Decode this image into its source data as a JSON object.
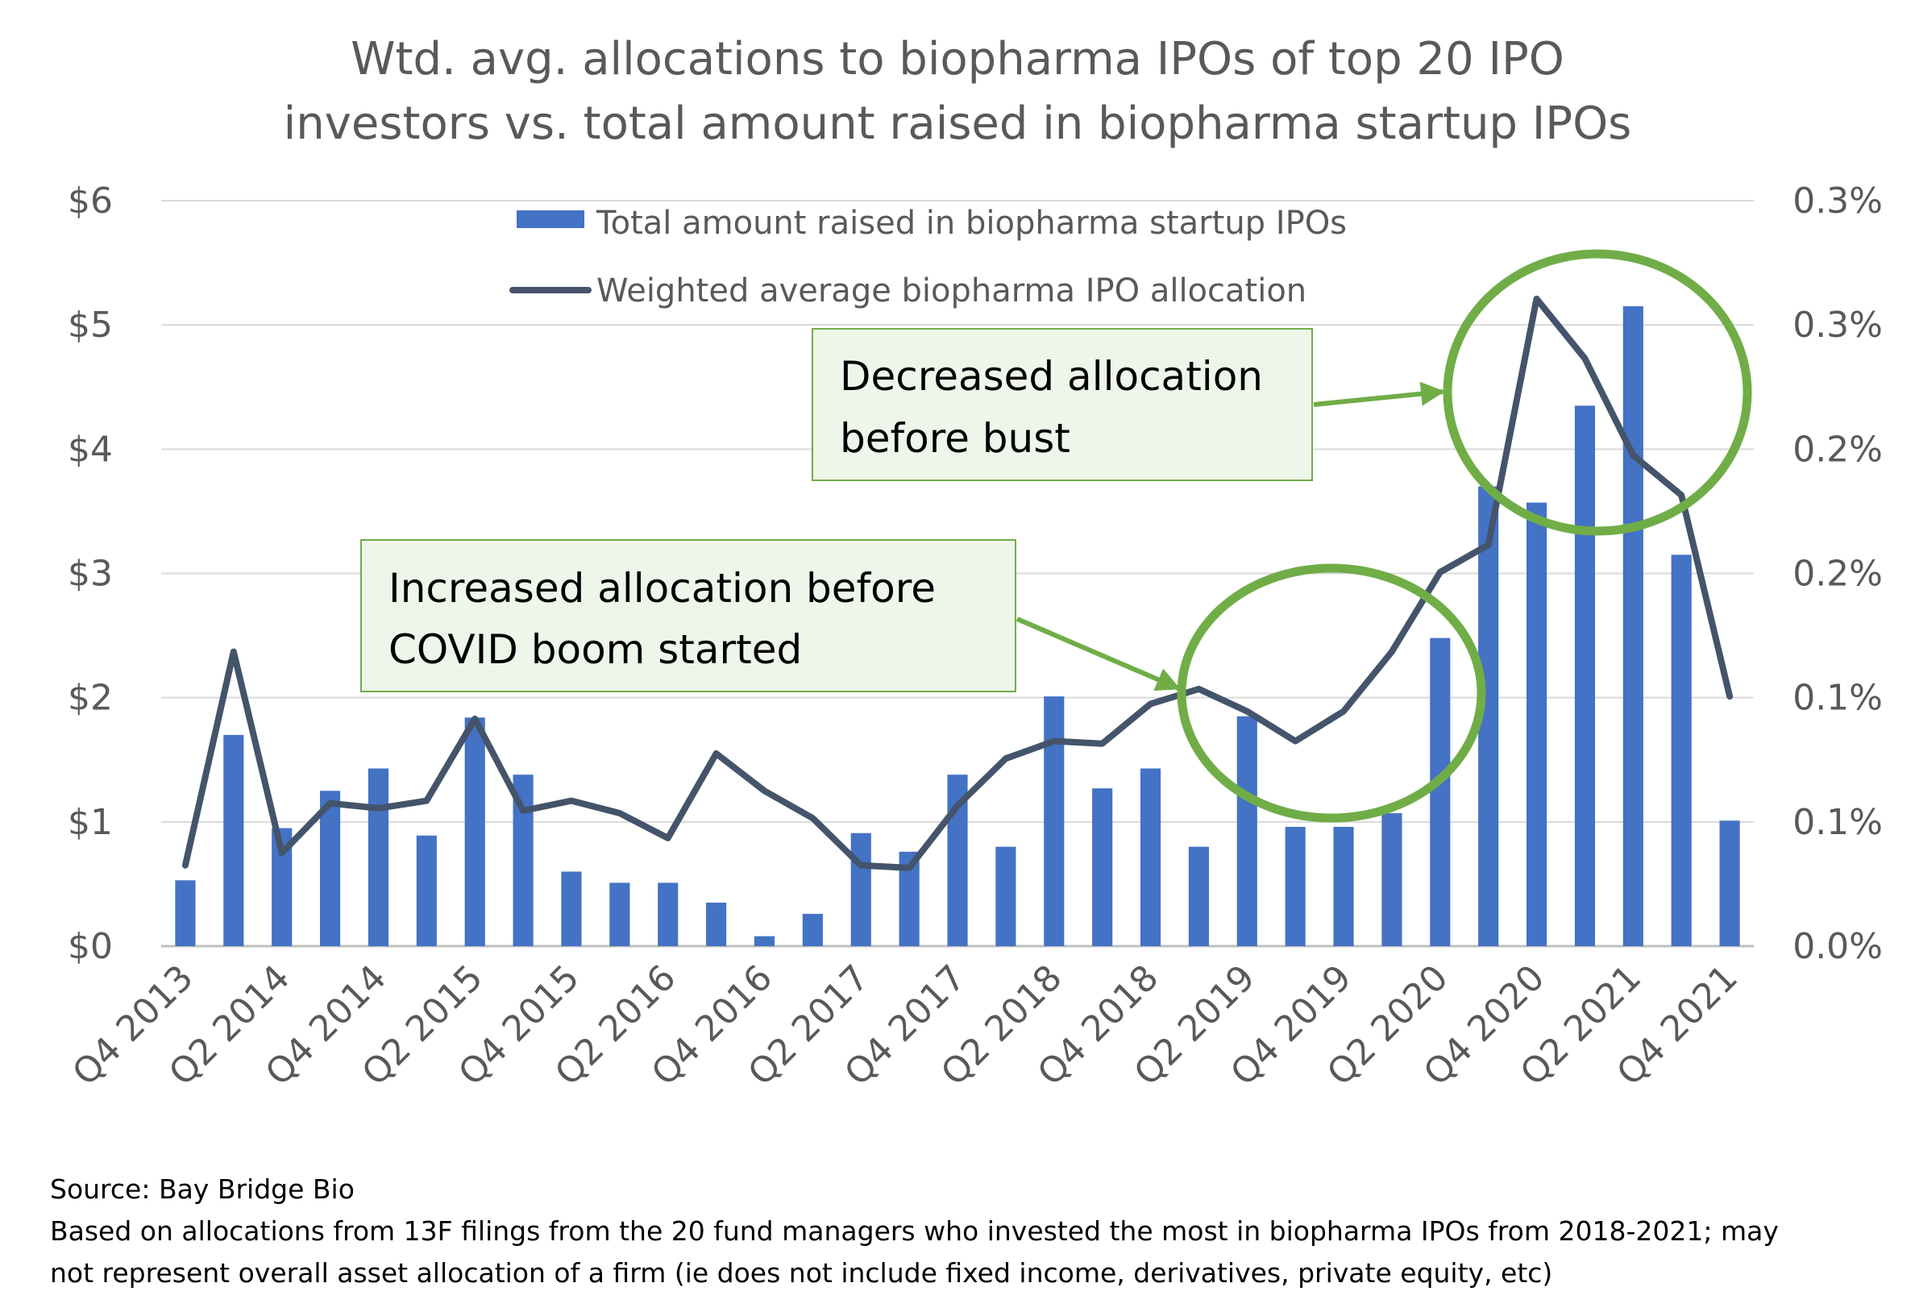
{
  "chart_data": {
    "type": "bar+line",
    "title_lines": [
      "Wtd. avg. allocations to biopharma IPOs of top 20 IPO",
      "investors vs. total amount raised in biopharma startup IPOs"
    ],
    "categories": [
      "Q4 2013",
      "Q1 2014",
      "Q2 2014",
      "Q3 2014",
      "Q4 2014",
      "Q1 2015",
      "Q2 2015",
      "Q3 2015",
      "Q4 2015",
      "Q1 2016",
      "Q2 2016",
      "Q3 2016",
      "Q4 2016",
      "Q1 2017",
      "Q2 2017",
      "Q3 2017",
      "Q4 2017",
      "Q1 2018",
      "Q2 2018",
      "Q3 2018",
      "Q4 2018",
      "Q1 2019",
      "Q2 2019",
      "Q3 2019",
      "Q4 2019",
      "Q1 2020",
      "Q2 2020",
      "Q3 2020",
      "Q4 2020",
      "Q1 2021",
      "Q2 2021",
      "Q3 2021",
      "Q4 2021"
    ],
    "x_tick_labels": [
      "Q4 2013",
      "Q2 2014",
      "Q4 2014",
      "Q2 2015",
      "Q4 2015",
      "Q2 2016",
      "Q4 2016",
      "Q2 2017",
      "Q4 2017",
      "Q2 2018",
      "Q4 2018",
      "Q2 2019",
      "Q4 2019",
      "Q2 2020",
      "Q4 2020",
      "Q2 2021",
      "Q4 2021"
    ],
    "series": [
      {
        "name": "Total amount raised in biopharma startup IPOs",
        "type": "bar",
        "axis": "left",
        "color": "#4472C4",
        "values": [
          0.53,
          1.7,
          0.95,
          1.25,
          1.43,
          0.89,
          1.84,
          1.38,
          0.6,
          0.51,
          0.51,
          0.35,
          0.08,
          0.26,
          0.91,
          0.76,
          1.38,
          0.8,
          2.01,
          1.27,
          1.43,
          0.8,
          1.85,
          0.96,
          0.96,
          1.07,
          2.48,
          3.7,
          3.57,
          4.35,
          5.15,
          3.15,
          1.01
        ]
      },
      {
        "name": "Weighted average biopharma IPO allocation",
        "type": "line",
        "axis": "right",
        "color": "#44546A",
        "values": [
          0.0325,
          0.1185,
          0.0375,
          0.0575,
          0.0555,
          0.0585,
          0.0915,
          0.0545,
          0.0585,
          0.0535,
          0.0435,
          0.0775,
          0.0625,
          0.0515,
          0.0325,
          0.0315,
          0.0565,
          0.0755,
          0.0825,
          0.0815,
          0.0975,
          0.1035,
          0.0945,
          0.0825,
          0.0945,
          0.1185,
          0.1505,
          0.1615,
          0.2605,
          0.2365,
          0.1975,
          0.1815,
          0.1005
        ]
      }
    ],
    "y_left": {
      "ylim": [
        0,
        6
      ],
      "ticks": [
        "$0",
        "$1",
        "$2",
        "$3",
        "$4",
        "$5",
        "$6"
      ]
    },
    "y_right": {
      "ylim": [
        0,
        0.3
      ],
      "ticks": [
        "0.0%",
        "0.1%",
        "0.1%",
        "0.2%",
        "0.2%",
        "0.3%",
        "0.3%"
      ]
    },
    "grid": true,
    "legend_position": "top-center",
    "annotations": [
      {
        "lines": [
          "Decreased allocation",
          "before bust"
        ]
      },
      {
        "lines": [
          "Increased allocation before",
          "COVID boom started"
        ]
      }
    ],
    "highlight_color": "#70AD47"
  },
  "footer": {
    "source": "Source: Bay Bridge Bio",
    "note_lines": [
      "Based on allocations from 13F filings from the 20 fund managers who invested the most in biopharma IPOs from 2018-2021; may",
      "not represent overall asset allocation of a firm (ie does not include fixed income, derivatives, private equity, etc)"
    ]
  }
}
